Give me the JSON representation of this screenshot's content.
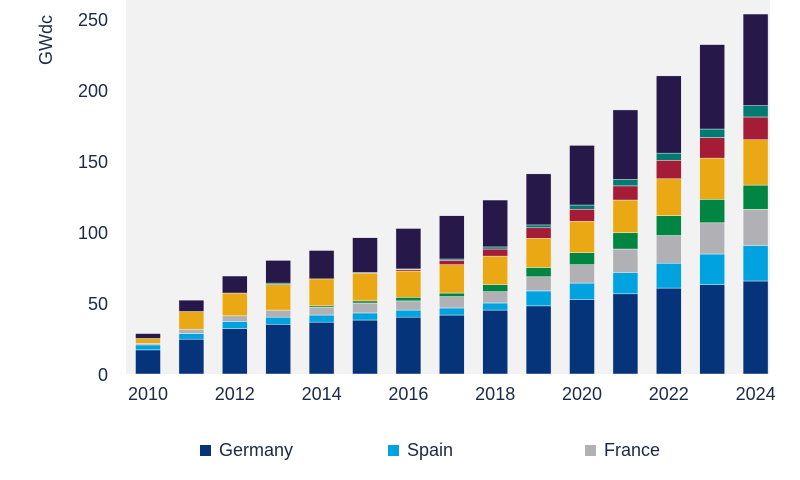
{
  "chart_data": {
    "type": "bar",
    "stacked": true,
    "title": "",
    "xlabel": "",
    "ylabel": "GWdc",
    "ylim": [
      0,
      250
    ],
    "yticks": [
      0,
      50,
      100,
      150,
      200,
      250
    ],
    "categories": [
      "2010",
      "2011",
      "2012",
      "2013",
      "2014",
      "2015",
      "2016",
      "2017",
      "2018",
      "2019",
      "2020",
      "2021",
      "2022",
      "2023",
      "2024"
    ],
    "xtick_labels": [
      "2010",
      "2012",
      "2014",
      "2016",
      "2018",
      "2020",
      "2022",
      "2024"
    ],
    "grid": false,
    "legend_position": "bottom",
    "series": [
      {
        "name": "Germany",
        "color": "#06347a",
        "values": [
          17,
          24.5,
          32,
          35,
          36.5,
          38,
          40,
          41.5,
          45,
          48,
          52.5,
          56.5,
          60.5,
          63,
          65.5
        ]
      },
      {
        "name": "Spain",
        "color": "#00a3e0",
        "values": [
          3.5,
          4,
          5,
          5,
          5,
          5,
          5,
          5,
          5,
          10.5,
          11.5,
          15,
          17.5,
          21.5,
          25
        ]
      },
      {
        "name": "France",
        "color": "#b1b1b5",
        "values": [
          1,
          3,
          4,
          5,
          5.5,
          7,
          6.5,
          8,
          8,
          10,
          13,
          16.5,
          19.5,
          22,
          25.5
        ]
      },
      {
        "color": "#008542",
        "values": [
          0,
          0,
          0,
          0,
          1,
          1.5,
          2.5,
          2.5,
          5,
          6.5,
          8.5,
          11.5,
          14,
          16.5,
          17
        ]
      },
      {
        "color": "#eaa914",
        "values": [
          3.5,
          12.5,
          16,
          18,
          19,
          19.5,
          18.5,
          20,
          20,
          20.5,
          22,
          23,
          26,
          29,
          32
        ]
      },
      {
        "color": "#a51c36",
        "values": [
          0,
          0,
          0,
          0,
          0,
          0,
          1,
          3,
          5,
          7.5,
          8.5,
          10,
          13,
          14.5,
          16
        ]
      },
      {
        "color": "#007b73",
        "values": [
          0,
          0,
          0,
          1,
          0,
          0.5,
          0.5,
          1,
          1.5,
          2,
          3,
          4.5,
          5,
          6,
          8
        ]
      },
      {
        "color": "#261949",
        "values": [
          3.5,
          8,
          12,
          16,
          20,
          24.5,
          28.5,
          30.5,
          33,
          36,
          42,
          49,
          54.5,
          59.5,
          64.5
        ]
      }
    ],
    "legend": [
      "Germany",
      "Spain",
      "France"
    ]
  },
  "colors": {
    "plot_background": "#f2f2f2",
    "text": "#1b2a47"
  }
}
